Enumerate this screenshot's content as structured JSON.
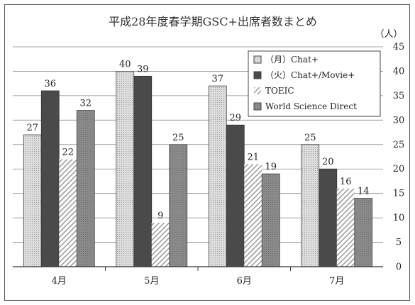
{
  "chart_data": {
    "type": "bar",
    "title": "平成28年度春学期GSC+出席者数まとめ",
    "unit_label": "（人）",
    "categories": [
      "4月",
      "5月",
      "6月",
      "7月"
    ],
    "series": [
      {
        "name": "（月）Chat+",
        "values": [
          27,
          40,
          37,
          25
        ],
        "color": "#d9d9d9",
        "pattern": "dots"
      },
      {
        "name": "（火）Chat+/Movie+",
        "values": [
          36,
          39,
          29,
          20
        ],
        "color": "#4a4a4a",
        "pattern": "solid"
      },
      {
        "name": "TOEIC",
        "values": [
          22,
          9,
          21,
          16
        ],
        "color": "#ffffff",
        "pattern": "diagonal"
      },
      {
        "name": "World Science Direct",
        "values": [
          32,
          25,
          19,
          14
        ],
        "color": "#8c8c8c",
        "pattern": "solid"
      }
    ],
    "ylim": [
      0,
      45
    ],
    "yticks": [
      "0",
      "5",
      "10",
      "15",
      "20",
      "25",
      "30",
      "35",
      "40",
      "45"
    ],
    "y_axis_side": "right",
    "grid": true,
    "legend_position": "top-right"
  }
}
